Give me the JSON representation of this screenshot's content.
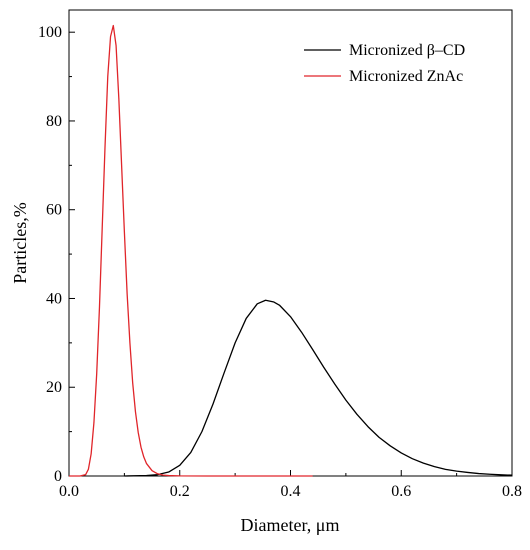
{
  "chart_data": {
    "type": "line",
    "xlabel": "Diameter, μm",
    "ylabel": "Particles,%",
    "xlim": [
      0.0,
      0.8
    ],
    "ylim": [
      0,
      105
    ],
    "x_ticks": [
      "0.0",
      "0.2",
      "0.4",
      "0.6",
      "0.8"
    ],
    "y_ticks": [
      "0",
      "20",
      "40",
      "60",
      "80",
      "100"
    ],
    "grid": false,
    "legend_position": "top-right",
    "series": [
      {
        "name": "Micronized β–CD",
        "color": "#000000",
        "x": [
          0.1,
          0.14,
          0.16,
          0.18,
          0.2,
          0.22,
          0.24,
          0.26,
          0.28,
          0.3,
          0.32,
          0.34,
          0.355,
          0.37,
          0.38,
          0.4,
          0.42,
          0.44,
          0.46,
          0.48,
          0.5,
          0.52,
          0.54,
          0.56,
          0.58,
          0.6,
          0.62,
          0.64,
          0.66,
          0.68,
          0.7,
          0.72,
          0.74,
          0.76,
          0.78,
          0.8
        ],
        "y": [
          0.0,
          0.1,
          0.3,
          0.9,
          2.4,
          5.3,
          10.0,
          16.2,
          23.2,
          30.0,
          35.5,
          38.8,
          39.6,
          39.2,
          38.5,
          35.9,
          32.4,
          28.5,
          24.5,
          20.7,
          17.1,
          13.9,
          11.1,
          8.7,
          6.8,
          5.2,
          3.9,
          2.9,
          2.1,
          1.5,
          1.1,
          0.8,
          0.55,
          0.4,
          0.27,
          0.18
        ]
      },
      {
        "name": "Micronized ZnAc",
        "color": "#e0252a",
        "x": [
          0.0,
          0.02,
          0.03,
          0.035,
          0.04,
          0.045,
          0.05,
          0.055,
          0.06,
          0.065,
          0.07,
          0.075,
          0.08,
          0.085,
          0.09,
          0.095,
          0.1,
          0.105,
          0.11,
          0.115,
          0.12,
          0.125,
          0.13,
          0.135,
          0.14,
          0.15,
          0.16,
          0.17,
          0.18,
          0.2,
          0.25,
          0.3,
          0.35,
          0.4,
          0.44
        ],
        "y": [
          0.0,
          0.0,
          0.3,
          1.5,
          5.0,
          12.0,
          23.0,
          38.0,
          56.0,
          74.0,
          90.0,
          99.0,
          101.5,
          97.0,
          85.0,
          70.0,
          55.0,
          41.0,
          30.0,
          21.0,
          14.5,
          9.8,
          6.5,
          4.3,
          2.8,
          1.2,
          0.5,
          0.2,
          0.1,
          0.02,
          0.0,
          0.0,
          0.0,
          0.0,
          0.0
        ]
      }
    ]
  }
}
